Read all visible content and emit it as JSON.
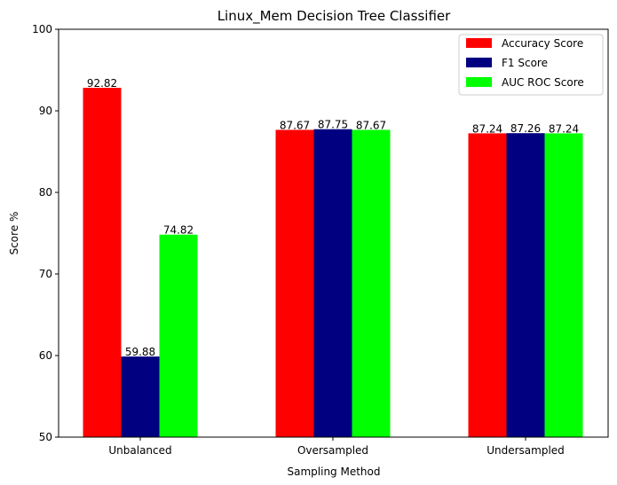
{
  "chart_data": {
    "type": "bar",
    "title": "Linux_Mem Decision Tree Classifier",
    "xlabel": "Sampling Method",
    "ylabel": "Score %",
    "categories": [
      "Unbalanced",
      "Oversampled",
      "Undersampled"
    ],
    "ylim": [
      50,
      100
    ],
    "yticks": [
      50,
      60,
      70,
      80,
      90,
      100
    ],
    "legend_position": "top-right",
    "grid": false,
    "series": [
      {
        "name": "Accuracy Score",
        "color": "#ff0000",
        "values": [
          92.82,
          87.67,
          87.24
        ],
        "labels": [
          "92.82",
          "87.67",
          "87.24"
        ]
      },
      {
        "name": "F1 Score",
        "color": "#000080",
        "values": [
          59.88,
          87.75,
          87.26
        ],
        "labels": [
          "59.88",
          "87.75",
          "87.26"
        ]
      },
      {
        "name": "AUC ROC Score",
        "color": "#00ff00",
        "values": [
          74.82,
          87.67,
          87.24
        ],
        "labels": [
          "74.82",
          "87.67",
          "87.24"
        ]
      }
    ]
  }
}
